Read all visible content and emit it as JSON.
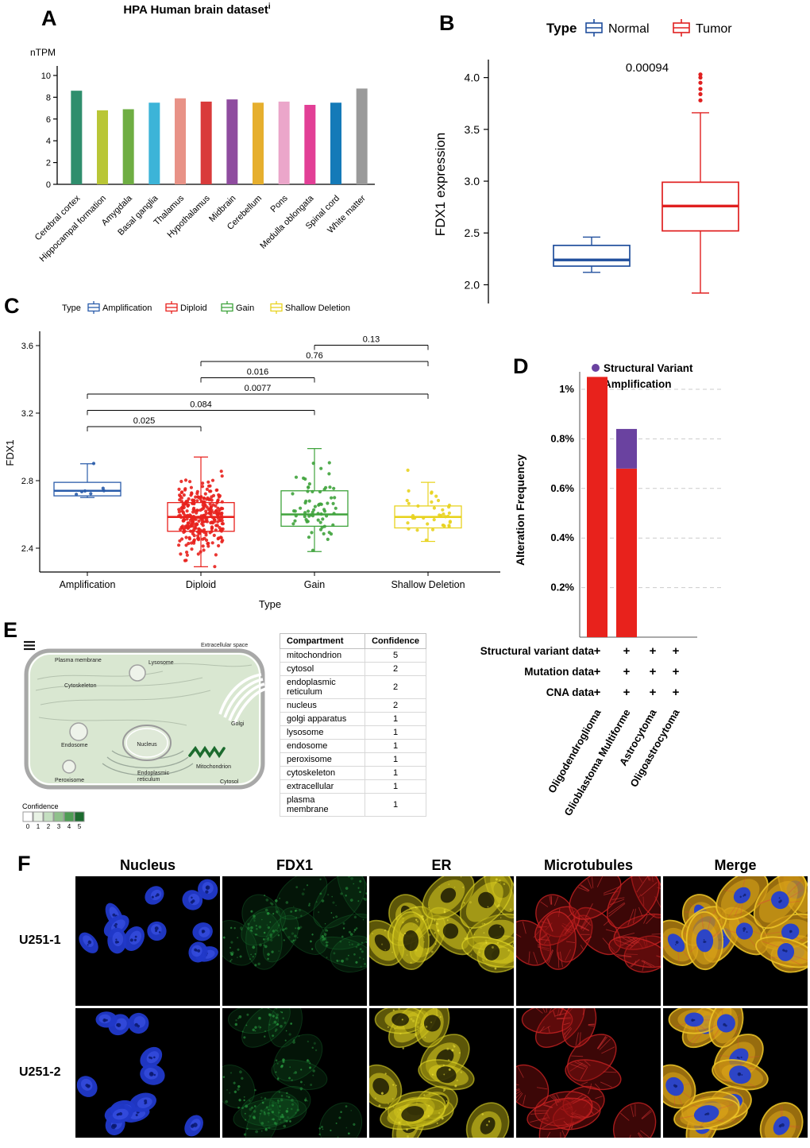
{
  "panels": {
    "A": {
      "letter": "A"
    },
    "B": {
      "letter": "B"
    },
    "C": {
      "letter": "C"
    },
    "D": {
      "letter": "D"
    },
    "E": {
      "letter": "E"
    },
    "F": {
      "letter": "F"
    }
  },
  "panel_f": {
    "columns": [
      "Nucleus",
      "FDX1",
      "ER",
      "Microtubules",
      "Merge"
    ],
    "rows": [
      "U251-1",
      "U251-2"
    ],
    "channel_colors": {
      "nucleus": "#2038c8",
      "fdx1": "#2fae49",
      "er": "#ddd020",
      "microtubules": "#d42424",
      "merge_body": "#d89a1a"
    }
  },
  "chart_data": [
    {
      "id": "A",
      "type": "bar",
      "title": "HPA Human brain dataset",
      "title_superscript": "i",
      "ylabel": "nTPM",
      "ylim": [
        0,
        10
      ],
      "yticks": [
        0,
        2,
        4,
        6,
        8,
        10
      ],
      "categories": [
        "Cerebral cortex",
        "Hippocampal formation",
        "Amygdala",
        "Basal ganglia",
        "Thalamus",
        "Hypothalamus",
        "Midbrain",
        "Cerebellum",
        "Pons",
        "Medulla oblongata",
        "Spinal cord",
        "White matter"
      ],
      "values": [
        8.6,
        6.8,
        6.9,
        7.5,
        7.9,
        7.6,
        7.8,
        7.5,
        7.6,
        7.3,
        7.5,
        8.8
      ],
      "colors": [
        "#2f8e6d",
        "#b9c636",
        "#6fae43",
        "#3cb4d8",
        "#e89287",
        "#d93b3b",
        "#8f4c9f",
        "#e6af2e",
        "#eba6ca",
        "#e23f96",
        "#147ab8",
        "#9a9a9a"
      ]
    },
    {
      "id": "B",
      "type": "box",
      "legend_title": "Type",
      "ylabel": "FDX1 expression",
      "ylim": [
        1.85,
        4.12
      ],
      "yticks": [
        2.0,
        2.5,
        3.0,
        3.5,
        4.0
      ],
      "pvalue": "0.00094",
      "groups": [
        {
          "name": "Normal",
          "color": "#1f4e9c",
          "stats": {
            "whisker_low": 2.12,
            "q1": 2.18,
            "median": 2.24,
            "q3": 2.38,
            "whisker_high": 2.46
          },
          "outliers": []
        },
        {
          "name": "Tumor",
          "color": "#e02020",
          "stats": {
            "whisker_low": 1.92,
            "q1": 2.52,
            "median": 2.76,
            "q3": 2.99,
            "whisker_high": 3.66
          },
          "outliers": [
            3.78,
            3.84,
            3.89,
            3.95,
            4.0,
            4.03
          ]
        }
      ]
    },
    {
      "id": "C",
      "type": "box_jitter",
      "legend_title": "Type",
      "xlabel": "Type",
      "ylabel": "FDX1",
      "ylim": [
        2.15,
        3.7
      ],
      "yticks": [
        2.4,
        2.8,
        3.2,
        3.6
      ],
      "groups": [
        {
          "name": "Amplification",
          "color": "#2a5caa",
          "points": [
            2.715,
            2.72,
            2.73,
            2.735,
            2.745,
            2.755,
            2.905
          ],
          "stats": {
            "whisker_low": 2.7,
            "q1": 2.71,
            "median": 2.74,
            "q3": 2.79,
            "whisker_high": 2.9
          }
        },
        {
          "name": "Diploid",
          "color": "#e8211d",
          "n_points": 300,
          "point_mean": 2.585,
          "point_sd": 0.11,
          "point_spread": [
            2.18,
            3.06
          ],
          "stats": {
            "whisker_low": 2.29,
            "q1": 2.5,
            "median": 2.585,
            "q3": 2.67,
            "whisker_high": 2.94
          }
        },
        {
          "name": "Gain",
          "color": "#3fa33c",
          "n_points": 68,
          "point_mean": 2.63,
          "point_sd": 0.13,
          "point_spread": [
            2.36,
            3.0
          ],
          "stats": {
            "whisker_low": 2.38,
            "q1": 2.53,
            "median": 2.6,
            "q3": 2.74,
            "whisker_high": 2.99
          }
        },
        {
          "name": "Shallow Deletion",
          "color": "#e8d31f",
          "n_points": 38,
          "point_mean": 2.59,
          "point_sd": 0.09,
          "point_spread": [
            2.4,
            2.91
          ],
          "stats": {
            "whisker_low": 2.44,
            "q1": 2.52,
            "median": 2.585,
            "q3": 2.65,
            "whisker_high": 2.79
          }
        }
      ],
      "comparisons": [
        {
          "a": 0,
          "b": 1,
          "label": "0.025"
        },
        {
          "a": 0,
          "b": 2,
          "label": "0.084"
        },
        {
          "a": 0,
          "b": 3,
          "label": "0.0077"
        },
        {
          "a": 1,
          "b": 2,
          "label": "0.016"
        },
        {
          "a": 1,
          "b": 3,
          "label": "0.76"
        },
        {
          "a": 2,
          "b": 3,
          "label": "0.13"
        }
      ]
    },
    {
      "id": "D",
      "type": "stacked_bar",
      "ylabel": "Alteration Frequency",
      "yticks": [
        "0.2%",
        "0.4%",
        "0.6%",
        "0.8%",
        "1%"
      ],
      "ytick_values": [
        0.2,
        0.4,
        0.6,
        0.8,
        1.0
      ],
      "ylim": [
        0,
        1.1
      ],
      "legend": [
        {
          "name": "Structural Variant",
          "color": "#6a42a0"
        },
        {
          "name": "Amplification",
          "color": "#e8221c"
        }
      ],
      "categories": [
        "Oligodendroglioma",
        "Glioblastoma Multiforme",
        "Astrocytoma",
        "Oligoastrocytoma"
      ],
      "series": [
        {
          "name": "Amplification",
          "color": "#e8221c",
          "values": [
            1.05,
            0.68,
            0,
            0
          ]
        },
        {
          "name": "Structural Variant",
          "color": "#6a42a0",
          "values": [
            0,
            0.16,
            0,
            0
          ]
        }
      ],
      "data_rows": [
        {
          "label": "Structural variant data",
          "flags": [
            "+",
            "+",
            "+",
            "+"
          ]
        },
        {
          "label": "Mutation data",
          "flags": [
            "+",
            "+",
            "+",
            "+"
          ]
        },
        {
          "label": "CNA data",
          "flags": [
            "+",
            "+",
            "+",
            "+"
          ]
        }
      ]
    },
    {
      "id": "E",
      "type": "table",
      "diagram_labels": [
        "Plasma membrane",
        "Extracellular space",
        "Lysosome",
        "Cytoskeleton",
        "Golgi",
        "Endosome",
        "Nucleus",
        "Mitochondrion",
        "Peroxisome",
        "Endoplasmic reticulum",
        "Cytosol"
      ],
      "confidence_legend": {
        "label": "Confidence",
        "levels": [
          "0",
          "1",
          "2",
          "3",
          "4",
          "5"
        ],
        "colors": [
          "#ffffff",
          "#e8f2e4",
          "#c4dfc0",
          "#8fc18b",
          "#4e9d54",
          "#1c6b2e"
        ]
      },
      "columns": [
        "Compartment",
        "Confidence"
      ],
      "rows": [
        [
          "mitochondrion",
          "5"
        ],
        [
          "cytosol",
          "2"
        ],
        [
          "endoplasmic reticulum",
          "2"
        ],
        [
          "nucleus",
          "2"
        ],
        [
          "golgi apparatus",
          "1"
        ],
        [
          "lysosome",
          "1"
        ],
        [
          "endosome",
          "1"
        ],
        [
          "peroxisome",
          "1"
        ],
        [
          "cytoskeleton",
          "1"
        ],
        [
          "extracellular",
          "1"
        ],
        [
          "plasma membrane",
          "1"
        ]
      ]
    }
  ]
}
